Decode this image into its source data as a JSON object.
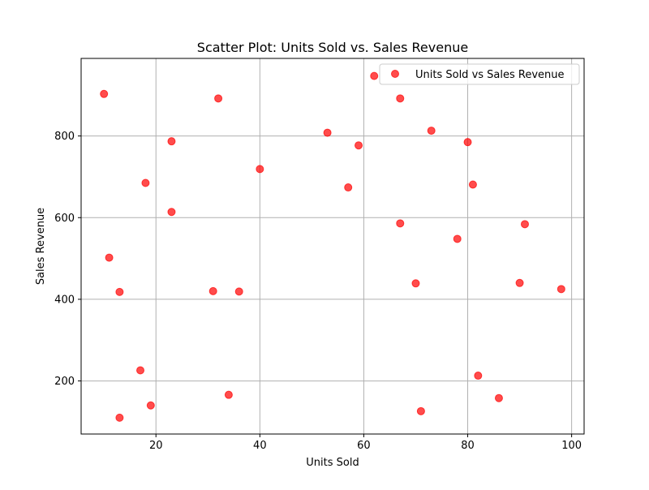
{
  "chart_data": {
    "type": "scatter",
    "title": "Scatter Plot: Units Sold vs. Sales Revenue",
    "xlabel": "Units Sold",
    "ylabel": "Sales Revenue",
    "xlim": [
      5.6,
      102.4
    ],
    "ylim": [
      70,
      990
    ],
    "xticks": [
      20,
      40,
      60,
      80,
      100
    ],
    "yticks": [
      200,
      400,
      600,
      800
    ],
    "grid": true,
    "legend_position": "top-right",
    "series": [
      {
        "name": "Units Sold vs Sales Revenue",
        "color": "#ff0000",
        "points": [
          {
            "x": 10,
            "y": 903
          },
          {
            "x": 11,
            "y": 502
          },
          {
            "x": 13,
            "y": 418
          },
          {
            "x": 13,
            "y": 110
          },
          {
            "x": 17,
            "y": 226
          },
          {
            "x": 18,
            "y": 685
          },
          {
            "x": 19,
            "y": 140
          },
          {
            "x": 23,
            "y": 787
          },
          {
            "x": 23,
            "y": 614
          },
          {
            "x": 31,
            "y": 420
          },
          {
            "x": 32,
            "y": 892
          },
          {
            "x": 34,
            "y": 166
          },
          {
            "x": 36,
            "y": 419
          },
          {
            "x": 40,
            "y": 719
          },
          {
            "x": 53,
            "y": 808
          },
          {
            "x": 57,
            "y": 674
          },
          {
            "x": 59,
            "y": 777
          },
          {
            "x": 62,
            "y": 947
          },
          {
            "x": 67,
            "y": 892
          },
          {
            "x": 67,
            "y": 586
          },
          {
            "x": 70,
            "y": 439
          },
          {
            "x": 71,
            "y": 126
          },
          {
            "x": 73,
            "y": 813
          },
          {
            "x": 78,
            "y": 548
          },
          {
            "x": 80,
            "y": 785
          },
          {
            "x": 81,
            "y": 681
          },
          {
            "x": 82,
            "y": 213
          },
          {
            "x": 86,
            "y": 158
          },
          {
            "x": 90,
            "y": 440
          },
          {
            "x": 91,
            "y": 584
          },
          {
            "x": 98,
            "y": 425
          }
        ]
      }
    ]
  }
}
